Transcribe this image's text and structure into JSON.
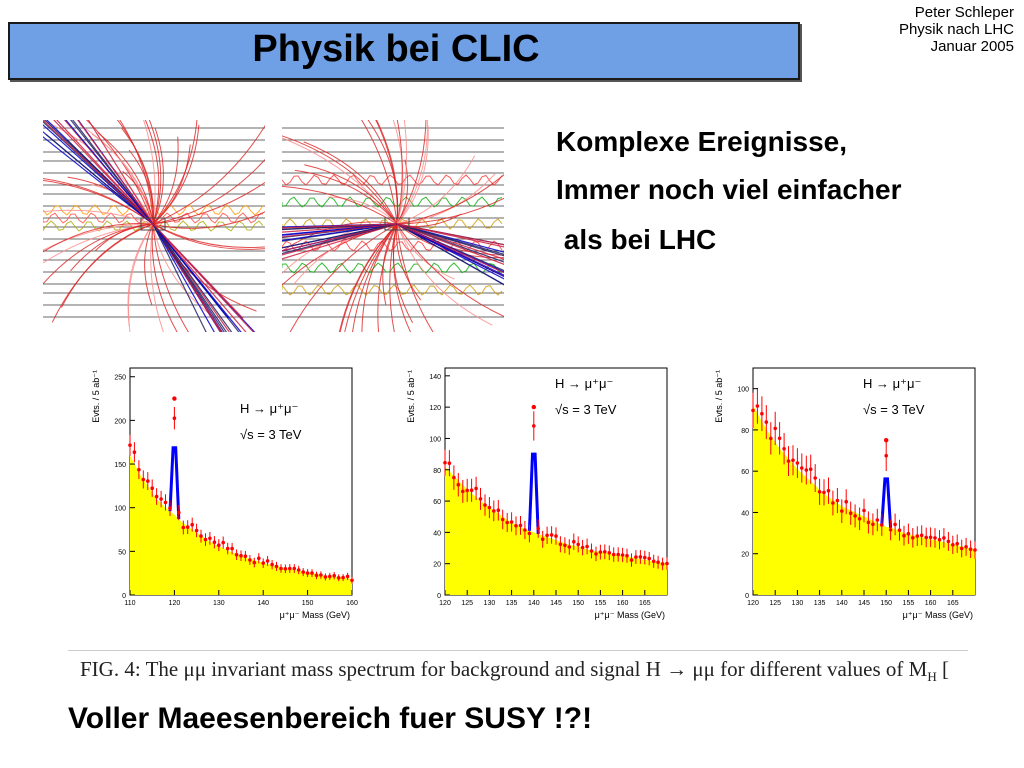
{
  "slide": {
    "title": "Physik bei CLIC",
    "author_lines": [
      "Peter Schleper",
      "Physik nach LHC",
      "Januar 2005"
    ],
    "bullets": [
      "Komplexe Ereignisse,",
      "Immer noch viel einfacher",
      " als bei LHC"
    ],
    "caption_fig": "FIG. 4:",
    "caption_text": "The μμ invariant mass spectrum for background and signal H → μμ for different values of M",
    "caption_sub": "H",
    "caption_tail": " [",
    "footer": "Voller Maeesenbereich fuer SUSY !?!"
  },
  "colors": {
    "title_bg": "#6fa0e6",
    "background_fill": "#ffff00",
    "points": "#ff0000",
    "signal": "#0000ff"
  },
  "chart_data": [
    {
      "type": "bar",
      "ylabel": "Evts. / 5 ab⁻¹",
      "xlabel": "μ⁺μ⁻ Mass (GeV)",
      "annotation_decay": "H → μ⁺μ⁻",
      "annotation_energy": "√s = 3 TeV",
      "xlim": [
        110,
        160
      ],
      "ylim": [
        0,
        260
      ],
      "xticks": [
        "110",
        "120",
        "130",
        "140",
        "150",
        "160"
      ],
      "yticks": [
        "0",
        "50",
        "100",
        "150",
        "200",
        "250"
      ],
      "signal_mass": 120,
      "signal_peak": 225,
      "x": [
        110,
        112,
        114,
        116,
        118,
        120,
        122,
        124,
        126,
        128,
        130,
        132,
        134,
        136,
        138,
        140,
        142,
        144,
        146,
        148,
        150,
        152,
        154,
        156,
        158,
        160
      ],
      "background": [
        160,
        140,
        125,
        110,
        100,
        92,
        82,
        75,
        68,
        61,
        56,
        51,
        47,
        43,
        40,
        37,
        34,
        32,
        30,
        28,
        26,
        24,
        22,
        21,
        20,
        18
      ]
    },
    {
      "type": "bar",
      "ylabel": "Evts. / 5 ab⁻¹",
      "xlabel": "μ⁺μ⁻ Mass (GeV)",
      "annotation_decay": "H → μ⁺μ⁻",
      "annotation_energy": "√s = 3 TeV",
      "xlim": [
        120,
        170
      ],
      "ylim": [
        0,
        145
      ],
      "xticks": [
        "120",
        "125",
        "130",
        "135",
        "140",
        "145",
        "150",
        "155",
        "160",
        "165"
      ],
      "yticks": [
        "0",
        "20",
        "40",
        "60",
        "80",
        "100",
        "120",
        "140"
      ],
      "signal_mass": 140,
      "signal_peak": 120,
      "x": [
        120,
        122,
        124,
        126,
        128,
        130,
        132,
        134,
        136,
        138,
        140,
        142,
        144,
        146,
        148,
        150,
        152,
        154,
        156,
        158,
        160,
        162,
        164,
        166,
        168,
        170
      ],
      "background": [
        82,
        76,
        70,
        65,
        60,
        56,
        52,
        48,
        45,
        42,
        40,
        38,
        36,
        34,
        32,
        31,
        29,
        28,
        27,
        26,
        25,
        24,
        23,
        22,
        21,
        20
      ]
    },
    {
      "type": "bar",
      "ylabel": "Evts. / 5 ab⁻¹",
      "xlabel": "μ⁺μ⁻ Mass (GeV)",
      "annotation_decay": "H → μ⁺μ⁻",
      "annotation_energy": "√s = 3 TeV",
      "xlim": [
        120,
        170
      ],
      "ylim": [
        0,
        110
      ],
      "xticks": [
        "120",
        "125",
        "130",
        "135",
        "140",
        "145",
        "150",
        "155",
        "160",
        "165"
      ],
      "yticks": [
        "0",
        "20",
        "40",
        "60",
        "80",
        "100"
      ],
      "signal_mass": 150,
      "signal_peak": 75,
      "x": [
        120,
        122,
        124,
        126,
        128,
        130,
        132,
        134,
        136,
        138,
        140,
        142,
        144,
        146,
        148,
        150,
        152,
        154,
        156,
        158,
        160,
        162,
        164,
        166,
        168,
        170
      ],
      "background": [
        92,
        84,
        77,
        71,
        66,
        61,
        57,
        53,
        49,
        46,
        43,
        41,
        39,
        37,
        35,
        33,
        32,
        30,
        29,
        28,
        27,
        26,
        25,
        24,
        23,
        22
      ]
    }
  ]
}
